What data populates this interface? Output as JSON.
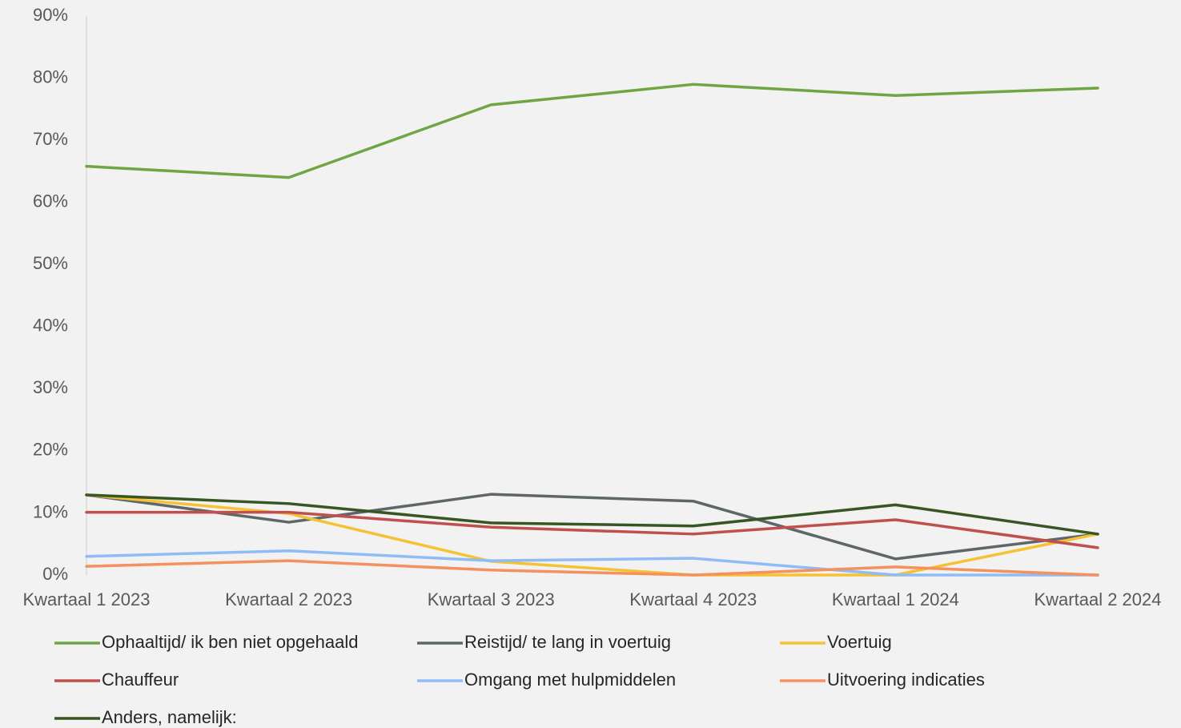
{
  "chart_data": {
    "type": "line",
    "categories": [
      "Kwartaal 1 2023",
      "Kwartaal 2 2023",
      "Kwartaal 3 2023",
      "Kwartaal 4 2023",
      "Kwartaal 1 2024",
      "Kwartaal 2 2024"
    ],
    "series": [
      {
        "name": "Ophaaltijd/ ik ben niet opgehaald",
        "color": "#70a544",
        "values": [
          65.8,
          64.0,
          75.7,
          79.0,
          77.2,
          78.4
        ]
      },
      {
        "name": "Reistijd/ te lang in voertuig",
        "color": "#5f6669",
        "values": [
          12.9,
          8.5,
          13.0,
          11.9,
          2.6,
          6.6
        ]
      },
      {
        "name": "Voertuig",
        "color": "#f5c233",
        "values": [
          12.9,
          9.9,
          2.2,
          0,
          0,
          6.6
        ]
      },
      {
        "name": "Chauffeur",
        "color": "#c0504d",
        "values": [
          10.1,
          10.1,
          7.7,
          6.6,
          8.9,
          4.4
        ]
      },
      {
        "name": "Omgang met hulpmiddelen",
        "color": "#8fbcf5",
        "values": [
          3.0,
          3.9,
          2.3,
          2.7,
          0,
          0
        ]
      },
      {
        "name": "Uitvoering indicaties",
        "color": "#f4915e",
        "values": [
          1.4,
          2.3,
          0.8,
          0,
          1.3,
          0
        ]
      },
      {
        "name": "Anders, namelijk:",
        "color": "#375623",
        "values": [
          12.9,
          11.5,
          8.4,
          7.9,
          11.3,
          6.6
        ]
      }
    ],
    "ylim": [
      0,
      90
    ],
    "yticks": [
      {
        "value": 0,
        "label": "0%"
      },
      {
        "value": 10,
        "label": "10%"
      },
      {
        "value": 20,
        "label": "20%"
      },
      {
        "value": 30,
        "label": "30%"
      },
      {
        "value": 40,
        "label": "40%"
      },
      {
        "value": 50,
        "label": "50%"
      },
      {
        "value": 60,
        "label": "60%"
      },
      {
        "value": 70,
        "label": "70%"
      },
      {
        "value": 80,
        "label": "80%"
      },
      {
        "value": 90,
        "label": "90%"
      }
    ],
    "grid": false,
    "legend": "bottom"
  }
}
